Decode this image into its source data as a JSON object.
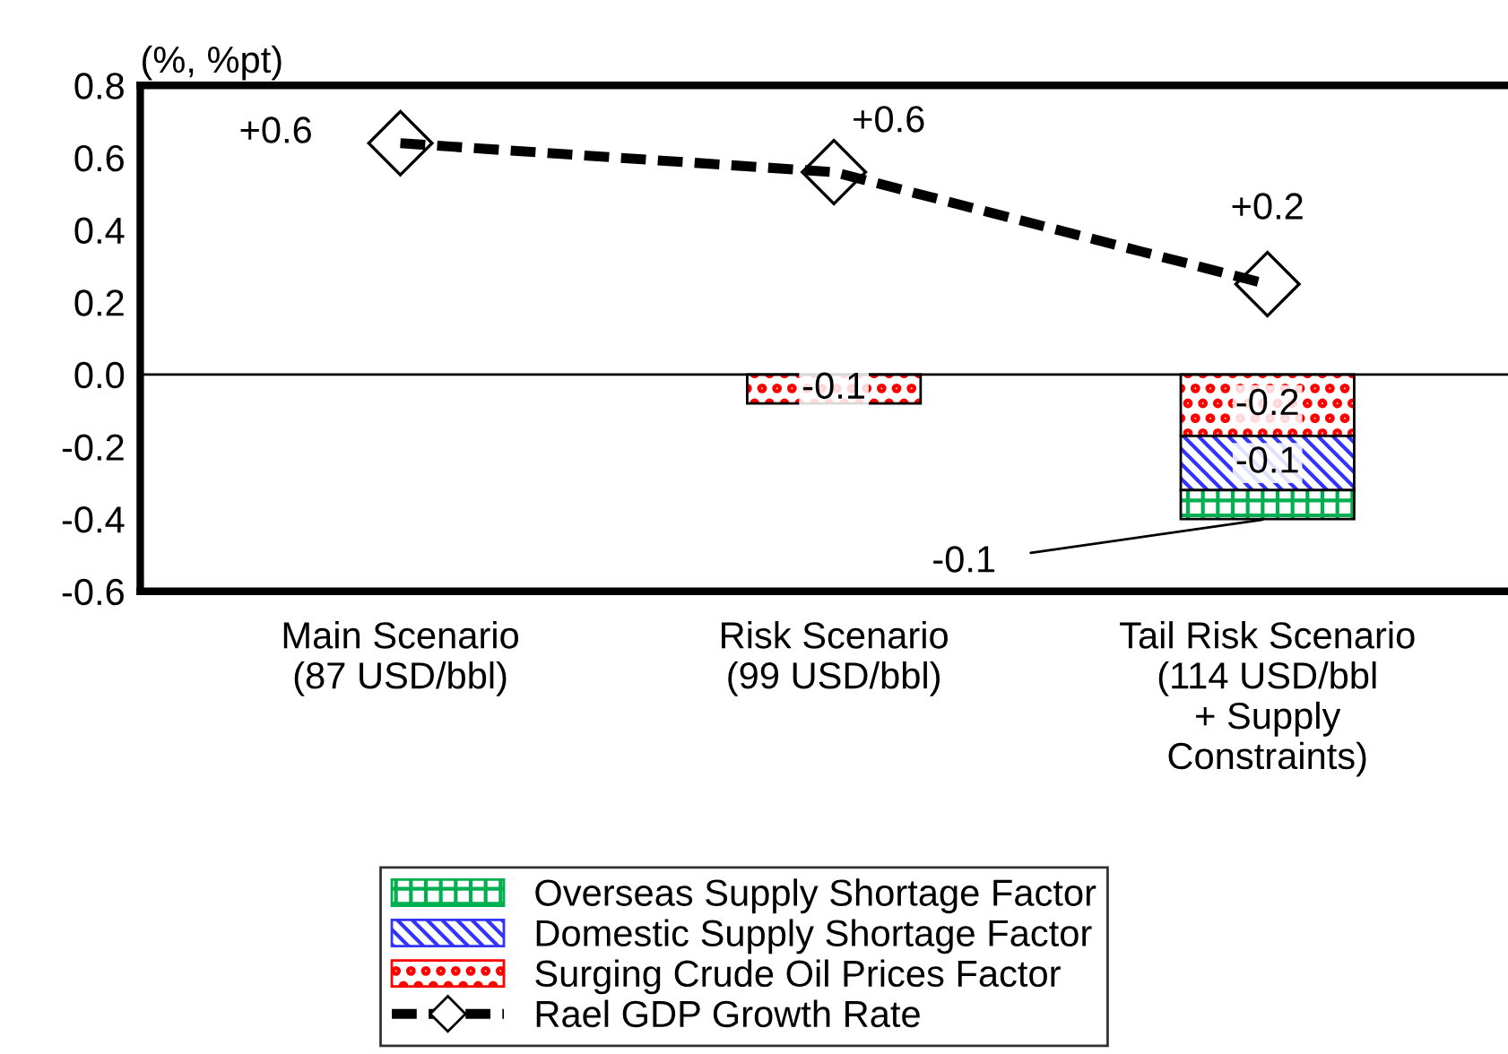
{
  "chart_data": {
    "type": "bar",
    "stacked": true,
    "ylabel": "(%, %pt)",
    "categories": [
      "Main Scenario\n(87 USD/bbl)",
      "Risk Scenario\n(99 USD/bbl)",
      "Tail Risk Scenario\n(114 USD/bbl\n+ Supply\nConstraints)"
    ],
    "series": [
      {
        "name": "Surging Crude Oil Prices Factor",
        "color": "#ff0000",
        "values": [
          null,
          -0.08,
          -0.17
        ],
        "value_labels": [
          null,
          "-0.1",
          "-0.2"
        ]
      },
      {
        "name": "Domestic Supply Shortage Factor",
        "color": "#3333ff",
        "values": [
          null,
          null,
          -0.15
        ],
        "value_labels": [
          null,
          null,
          "-0.1"
        ]
      },
      {
        "name": "Overseas Supply Shortage Factor",
        "color": "#00b050",
        "values": [
          null,
          null,
          -0.08
        ],
        "value_labels": [
          null,
          null,
          "-0.1"
        ]
      },
      {
        "name": "Rael GDP Growth Rate",
        "type": "line",
        "color": "#000000",
        "marker": "diamond",
        "line_style": "dashed",
        "values": [
          0.64,
          0.56,
          0.25
        ],
        "value_labels": [
          "+0.6",
          "+0.6",
          "+0.2"
        ]
      }
    ],
    "ylim": [
      -0.6,
      0.8
    ],
    "yticks": [
      {
        "value": -0.6,
        "label": "-0.6"
      },
      {
        "value": -0.4,
        "label": "-0.4"
      },
      {
        "value": -0.2,
        "label": "-0.2"
      },
      {
        "value": 0.0,
        "label": "0.0"
      },
      {
        "value": 0.2,
        "label": "0.2"
      },
      {
        "value": 0.4,
        "label": "0.4"
      },
      {
        "value": 0.6,
        "label": "0.6"
      },
      {
        "value": 0.8,
        "label": "0.8"
      }
    ],
    "ref_lines": [
      {
        "axis": "y",
        "value": 0
      }
    ],
    "grid": false,
    "legend": "bottom"
  }
}
